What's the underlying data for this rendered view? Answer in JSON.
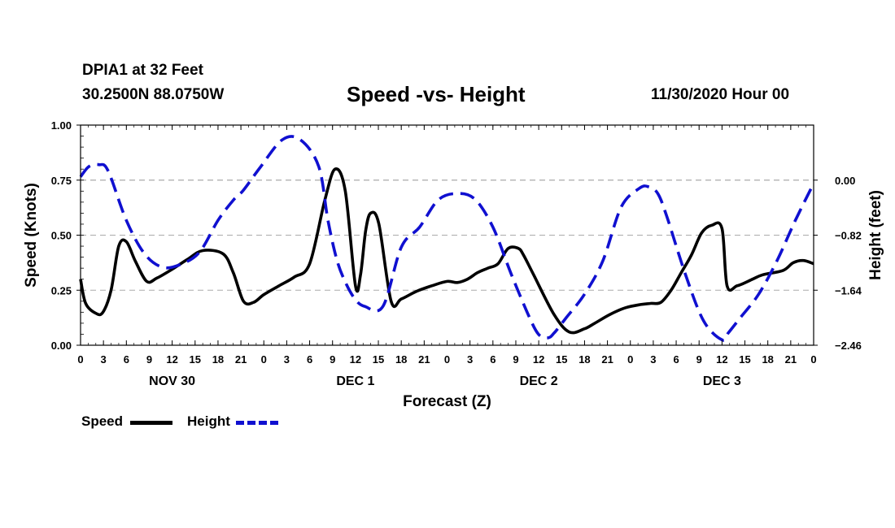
{
  "header": {
    "station": "DPIA1 at 32 Feet",
    "coords": "30.2500N 88.0750W",
    "title": "Speed -vs- Height",
    "date": "11/30/2020 Hour 00"
  },
  "legend": {
    "speed_label": "Speed",
    "height_label": "Height",
    "speed_color": "#000000",
    "height_color": "#1010d0"
  },
  "chart_data": {
    "type": "line",
    "title": "Speed -vs- Height",
    "xlabel": "Forecast (Z)",
    "ylabel": "Speed (Knots)",
    "y2label": "Height (feet)",
    "xlim": [
      0,
      72
    ],
    "ylim": [
      0,
      1.0
    ],
    "y2lim": [
      -2.46,
      0.82
    ],
    "y_ticks": [
      "1.00",
      "0.75",
      "0.50",
      "0.25",
      "0.00"
    ],
    "y_tick_values": [
      1.0,
      0.75,
      0.5,
      0.25,
      0.0
    ],
    "y2_ticks": [
      "0.00",
      "−0.82",
      "−1.64",
      "−2.46"
    ],
    "y2_tick_values": [
      0.0,
      -0.82,
      -1.64,
      -2.46
    ],
    "x_ticks": [
      "0",
      "3",
      "6",
      "9",
      "12",
      "15",
      "18",
      "21",
      "0",
      "3",
      "6",
      "9",
      "12",
      "15",
      "18",
      "21",
      "0",
      "3",
      "6",
      "9",
      "12",
      "15",
      "18",
      "21",
      "0",
      "3",
      "6",
      "9",
      "12",
      "15",
      "18",
      "21",
      "0"
    ],
    "x_tick_step": 2.25,
    "day_labels": [
      {
        "label": "NOV 30",
        "x": 9
      },
      {
        "label": "DEC 1",
        "x": 27
      },
      {
        "label": "DEC 2",
        "x": 45
      },
      {
        "label": "DEC 3",
        "x": 63
      }
    ],
    "grid": true,
    "series": [
      {
        "name": "Speed",
        "axis": "left",
        "style": "solid",
        "color": "#000000",
        "x": [
          0,
          0.5,
          1.5,
          2.2,
          3,
          3.75,
          4.5,
          5.4,
          6.5,
          7.5,
          9,
          10.5,
          12,
          14,
          15,
          16,
          17,
          18,
          19.5,
          21,
          22.5,
          24,
          25,
          26,
          27,
          27.5,
          28,
          28.5,
          29.3,
          30.5,
          31.5,
          33,
          34.5,
          36,
          37,
          38,
          39,
          40,
          41,
          42,
          43,
          43.5,
          44.5,
          46.5,
          48,
          49.5,
          50.5,
          52,
          53.5,
          55,
          56,
          57,
          58,
          59,
          60,
          61,
          62,
          63,
          63.5,
          64.5,
          66,
          67,
          69,
          70,
          71,
          72
        ],
        "y": [
          0.3,
          0.19,
          0.145,
          0.15,
          0.25,
          0.45,
          0.47,
          0.38,
          0.29,
          0.305,
          0.345,
          0.39,
          0.43,
          0.415,
          0.33,
          0.2,
          0.195,
          0.23,
          0.27,
          0.31,
          0.37,
          0.66,
          0.8,
          0.7,
          0.27,
          0.32,
          0.52,
          0.6,
          0.55,
          0.2,
          0.21,
          0.245,
          0.27,
          0.29,
          0.285,
          0.3,
          0.33,
          0.35,
          0.37,
          0.44,
          0.44,
          0.41,
          0.32,
          0.14,
          0.06,
          0.075,
          0.1,
          0.14,
          0.17,
          0.185,
          0.19,
          0.195,
          0.25,
          0.33,
          0.41,
          0.51,
          0.545,
          0.53,
          0.27,
          0.27,
          0.3,
          0.32,
          0.34,
          0.375,
          0.385,
          0.37
        ]
      },
      {
        "name": "Height",
        "axis": "right",
        "style": "dashed",
        "color": "#1010d0",
        "x": [
          0,
          0.8,
          1.8,
          2.7,
          4.5,
          6.3,
          8.1,
          9.9,
          11.7,
          13.5,
          15,
          16,
          17.6,
          19.8,
          21.6,
          23.4,
          24.3,
          25.2,
          26.1,
          27,
          27.9,
          29.7,
          31.5,
          33.3,
          35.1,
          36.9,
          38.7,
          40.5,
          42.3,
          44.1,
          45,
          45.9,
          46.5,
          47.7,
          49.5,
          51.3,
          53.1,
          54.9,
          55.8,
          56.7,
          57.6,
          59.4,
          61.2,
          63,
          63.6,
          64.8,
          66.6,
          68.4,
          70.2,
          72
        ],
        "y": [
          0.05,
          0.2,
          0.23,
          0.14,
          -0.6,
          -1.1,
          -1.3,
          -1.25,
          -1.07,
          -0.6,
          -0.3,
          -0.15,
          0.18,
          0.6,
          0.6,
          0.2,
          -0.6,
          -1.2,
          -1.55,
          -1.78,
          -1.88,
          -1.88,
          -1.0,
          -0.7,
          -0.3,
          -0.2,
          -0.28,
          -0.7,
          -1.4,
          -2.05,
          -2.3,
          -2.35,
          -2.28,
          -2.05,
          -1.7,
          -1.2,
          -0.4,
          -0.12,
          -0.1,
          -0.2,
          -0.55,
          -1.4,
          -2.1,
          -2.38,
          -2.28,
          -2.05,
          -1.7,
          -1.2,
          -0.6,
          -0.05
        ]
      }
    ]
  }
}
